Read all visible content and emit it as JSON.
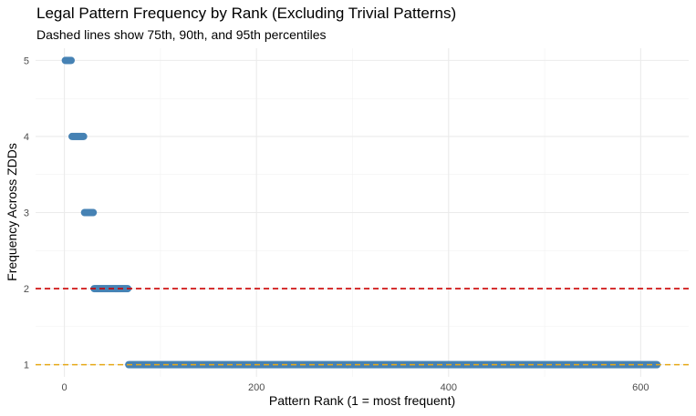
{
  "chart_data": {
    "type": "scatter",
    "title": "Legal Pattern Frequency by Rank (Excluding Trivial Patterns)",
    "subtitle": "Dashed lines show 75th, 90th, and 95th percentiles",
    "xlabel": "Pattern Rank (1 = most frequent)",
    "ylabel": "Frequency Across ZDDs",
    "xlim": [
      -30,
      650
    ],
    "ylim": [
      0.84,
      5.16
    ],
    "x_ticks": [
      0,
      200,
      400,
      600
    ],
    "y_ticks": [
      1,
      2,
      3,
      4,
      5
    ],
    "grid": true,
    "series_color": "#4682b4",
    "points": [
      {
        "x_start": 1,
        "x_end": 7,
        "y": 5
      },
      {
        "x_start": 8,
        "x_end": 20,
        "y": 4
      },
      {
        "x_start": 21,
        "x_end": 30,
        "y": 3
      },
      {
        "x_start": 31,
        "x_end": 66,
        "y": 2
      },
      {
        "x_start": 67,
        "x_end": 617,
        "y": 1
      }
    ],
    "reference_lines": [
      {
        "y": 2,
        "color": "#cc0000"
      },
      {
        "y": 1,
        "color": "#e6a817"
      }
    ]
  }
}
